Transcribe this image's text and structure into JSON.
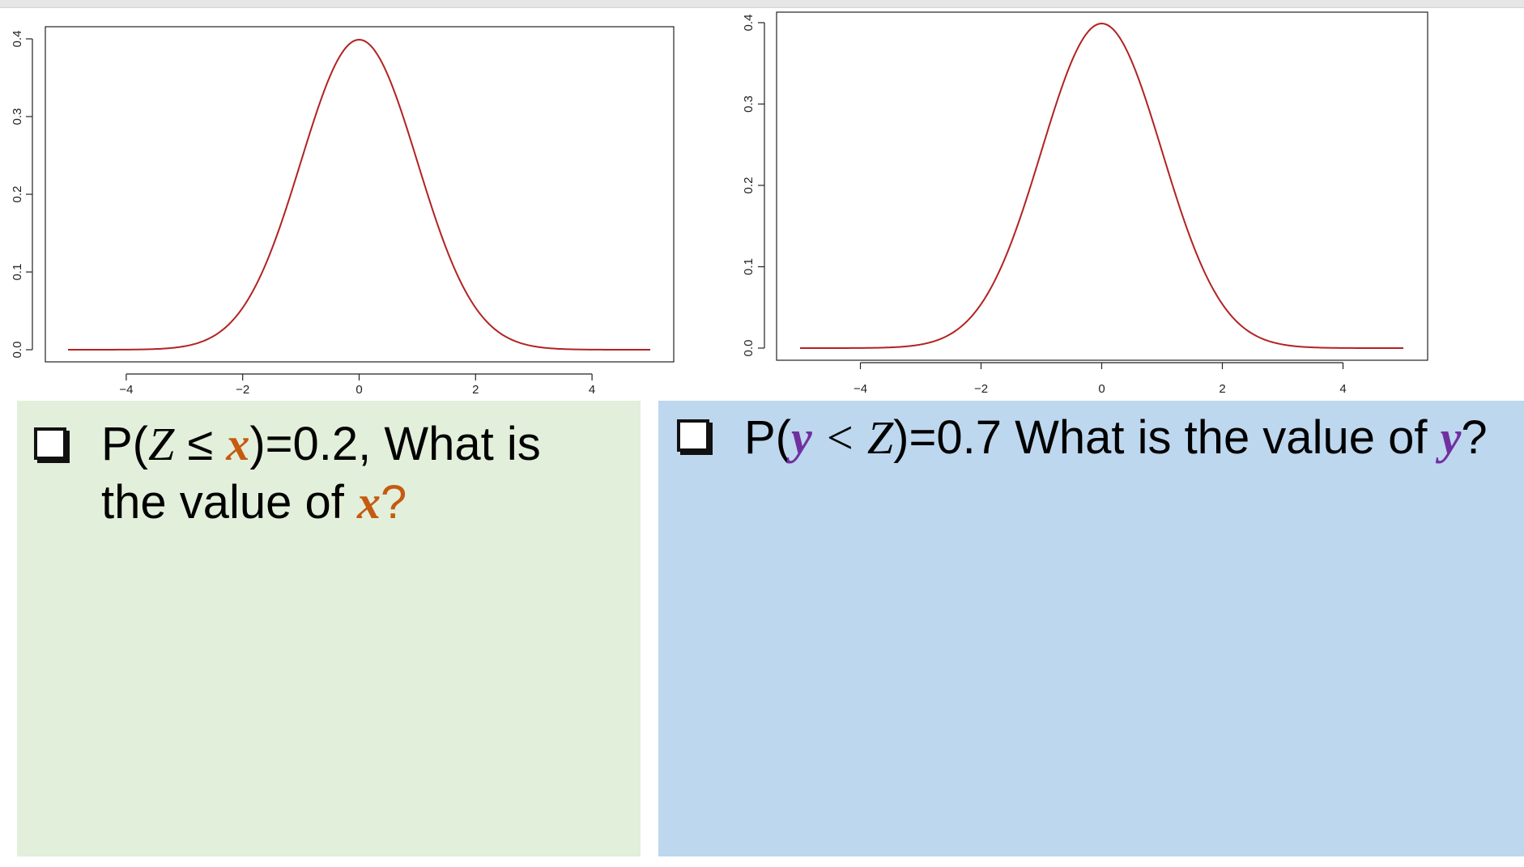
{
  "colors": {
    "curve": "#b22222",
    "panel_left_bg": "#e2efda",
    "panel_right_bg": "#bdd7ee",
    "x_var": "#c55a11",
    "y_var": "#7030a0"
  },
  "chart_data": [
    {
      "type": "line",
      "title": "",
      "xlabel": "",
      "ylabel": "",
      "xlim": [
        -5,
        5
      ],
      "ylim": [
        0,
        0.4
      ],
      "x_ticks": [
        "−4",
        "−2",
        "0",
        "2",
        "4"
      ],
      "y_ticks": [
        "0.0",
        "0.1",
        "0.2",
        "0.3",
        "0.4"
      ],
      "series": [
        {
          "x": [
            -5,
            -4.5,
            -4,
            -3.5,
            -3,
            -2.5,
            -2,
            -1.5,
            -1,
            -0.5,
            0,
            0.5,
            1,
            1.5,
            2,
            2.5,
            3,
            3.5,
            4,
            4.5,
            5
          ],
          "values": [
            0.0,
            0.0,
            0.0001,
            0.0009,
            0.0044,
            0.0175,
            0.054,
            0.1295,
            0.242,
            0.3521,
            0.3989,
            0.3521,
            0.242,
            0.1295,
            0.054,
            0.0175,
            0.0044,
            0.0009,
            0.0001,
            0.0,
            0.0
          ]
        }
      ]
    },
    {
      "type": "line",
      "title": "",
      "xlabel": "",
      "ylabel": "",
      "xlim": [
        -5,
        5
      ],
      "ylim": [
        0,
        0.4
      ],
      "x_ticks": [
        "−4",
        "−2",
        "0",
        "2",
        "4"
      ],
      "y_ticks": [
        "0.0",
        "0.1",
        "0.2",
        "0.3",
        "0.4"
      ],
      "series": [
        {
          "x": [
            -5,
            -4.5,
            -4,
            -3.5,
            -3,
            -2.5,
            -2,
            -1.5,
            -1,
            -0.5,
            0,
            0.5,
            1,
            1.5,
            2,
            2.5,
            3,
            3.5,
            4,
            4.5,
            5
          ],
          "values": [
            0.0,
            0.0,
            0.0001,
            0.0009,
            0.0044,
            0.0175,
            0.054,
            0.1295,
            0.242,
            0.3521,
            0.3989,
            0.3521,
            0.242,
            0.1295,
            0.054,
            0.0175,
            0.0044,
            0.0009,
            0.0001,
            0.0,
            0.0
          ]
        }
      ]
    }
  ],
  "question_left": {
    "prefix": "P(",
    "z": "Z",
    "op": " ≤ ",
    "var": "x",
    "suffix": ")=0.2, What is the value of ",
    "var2": "x",
    "end": "?"
  },
  "question_right": {
    "prefix": "P(",
    "var": "y",
    "op": " < ",
    "z": "Z",
    "suffix": ")=0.7 What is the value of ",
    "var2": "y",
    "end": "?"
  }
}
